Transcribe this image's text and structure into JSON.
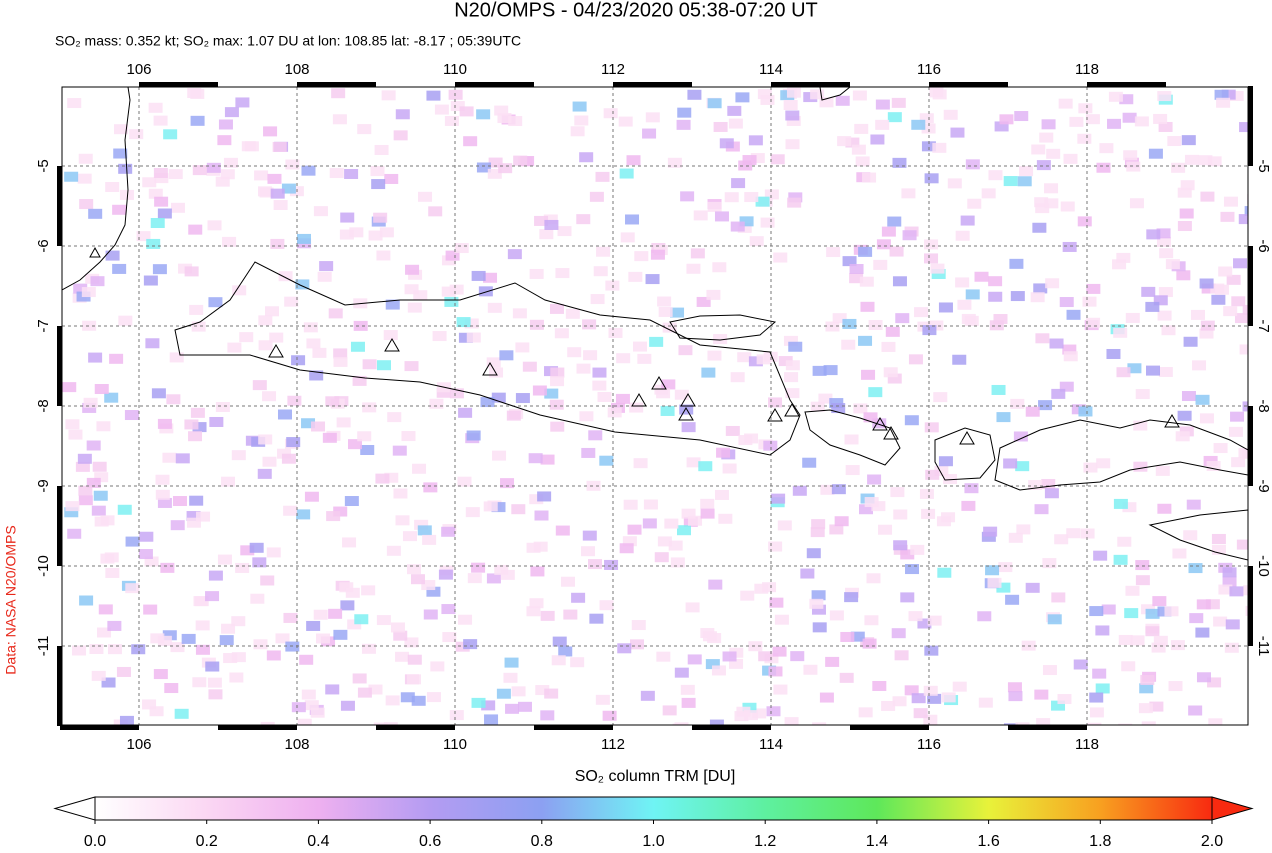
{
  "title": "N20/OMPS - 04/23/2020 05:38-07:20 UT",
  "subtitle": "SO₂ mass: 0.352 kt; SO₂ max: 1.07 DU at lon: 108.85 lat: -8.17 ; 05:39UTC",
  "side_label": "Data: NASA N20/OMPS",
  "map": {
    "lon_ticks": [
      106,
      108,
      110,
      112,
      114,
      116,
      118
    ],
    "lat_ticks": [
      -5,
      -6,
      -7,
      -8,
      -9,
      -10,
      -11
    ]
  },
  "colorbar": {
    "label": "SO₂ column TRM [DU]",
    "ticks": [
      {
        "value": 0,
        "label": "0.0"
      },
      {
        "value": 0.2,
        "label": "0.2"
      },
      {
        "value": 0.4,
        "label": "0.4"
      },
      {
        "value": 0.6,
        "label": "0.6"
      },
      {
        "value": 0.8,
        "label": "0.8"
      },
      {
        "value": 1,
        "label": "1.0"
      },
      {
        "value": 1.2,
        "label": "1.2"
      },
      {
        "value": 1.4,
        "label": "1.4"
      },
      {
        "value": 1.6,
        "label": "1.6"
      },
      {
        "value": 1.8,
        "label": "1.8"
      },
      {
        "value": 2,
        "label": "2.0"
      }
    ]
  }
}
